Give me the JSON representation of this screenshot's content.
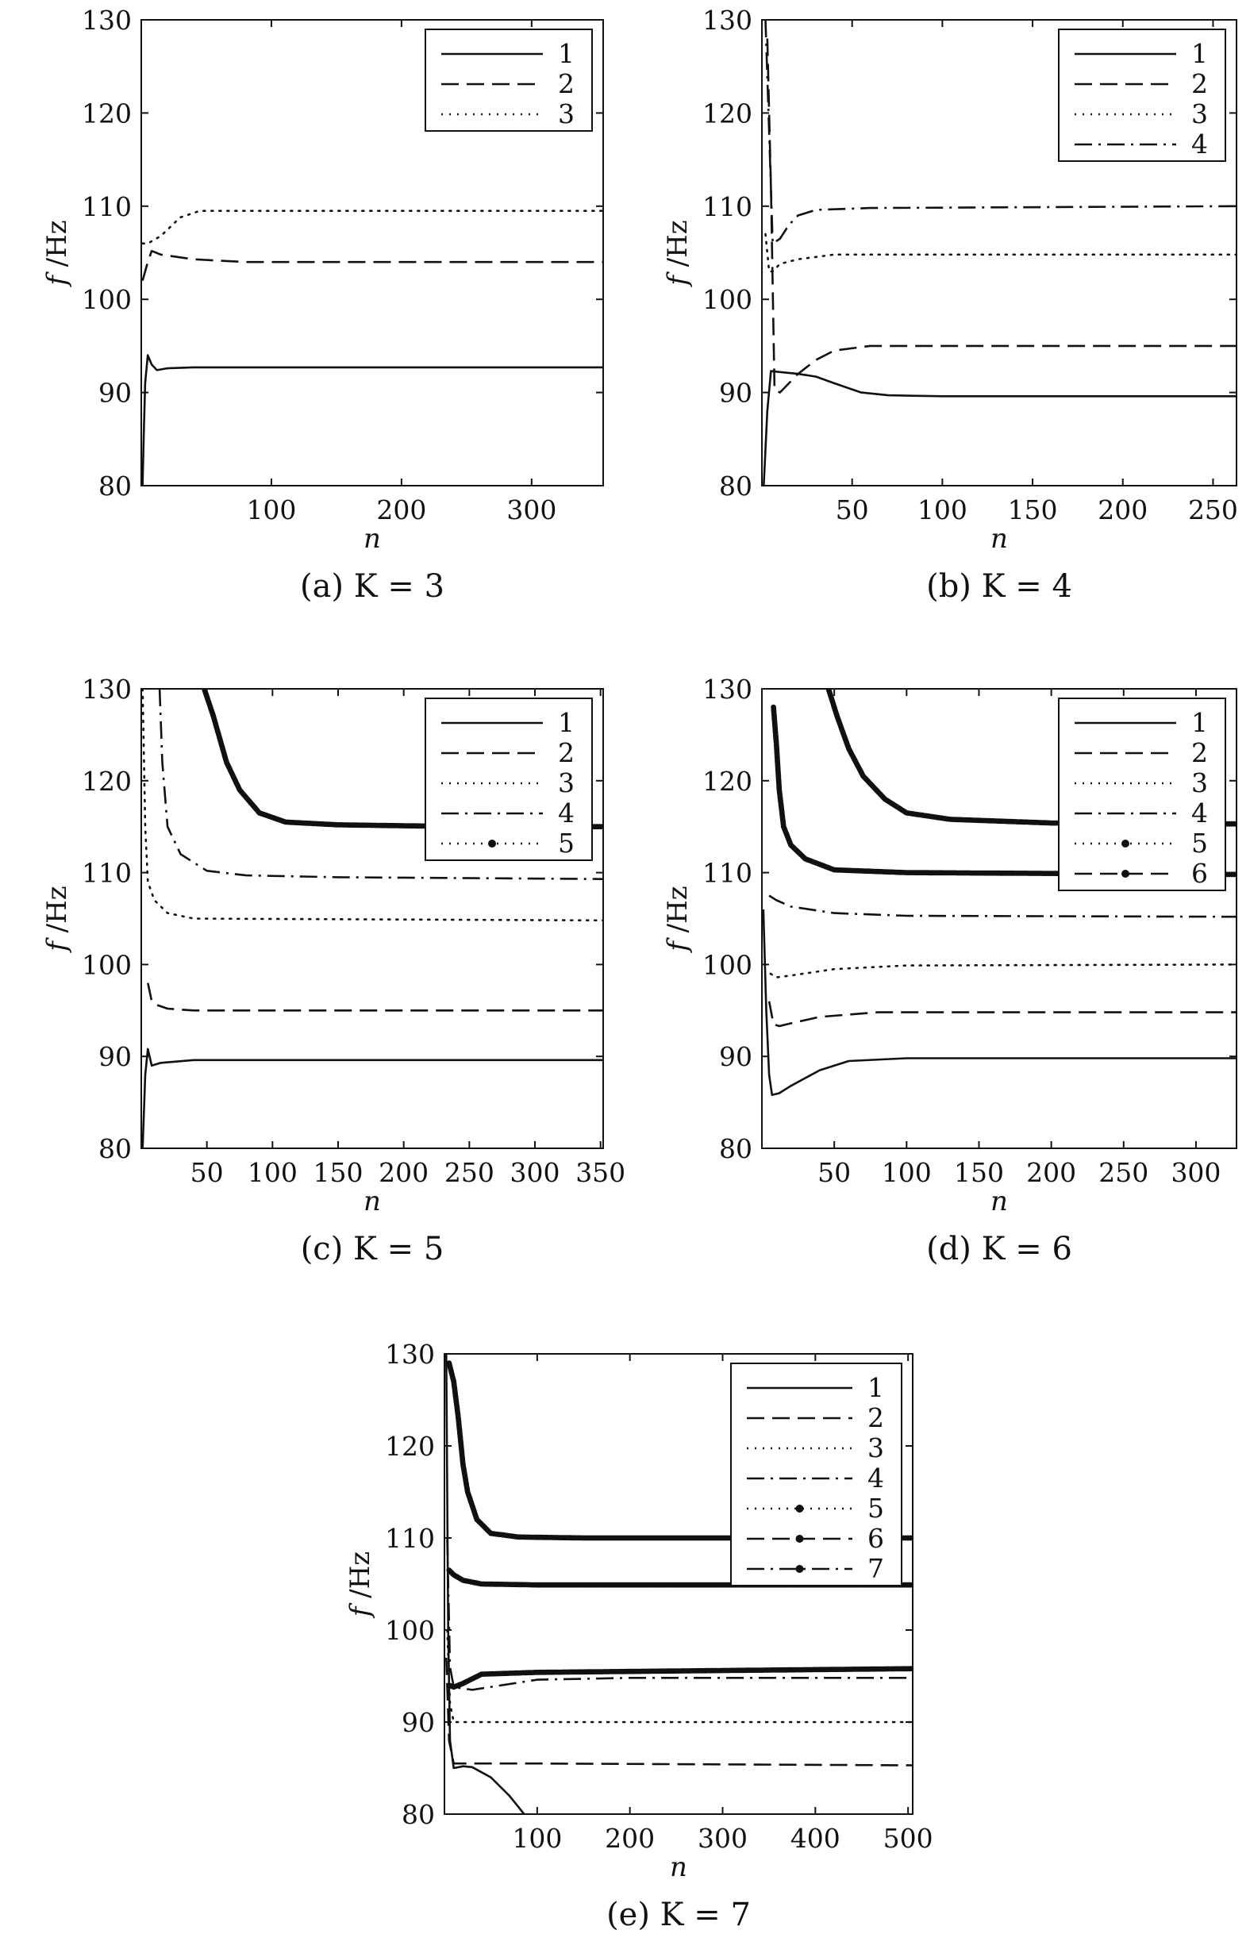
{
  "chart_data": [
    {
      "type": "line",
      "caption": "(a)  K = 3",
      "xlabel": "n",
      "ylabel": "f /Hz",
      "xlim": [
        0,
        355
      ],
      "ylim": [
        80,
        130
      ],
      "xticks": [
        100,
        200,
        300
      ],
      "yticks": [
        80,
        90,
        100,
        110,
        120,
        130
      ],
      "legend_position": "top-right",
      "series": [
        {
          "name": "1",
          "style": "solid",
          "points": [
            [
              1,
              80
            ],
            [
              2,
              86
            ],
            [
              3,
              91
            ],
            [
              5,
              94
            ],
            [
              8,
              93
            ],
            [
              12,
              92.4
            ],
            [
              20,
              92.6
            ],
            [
              40,
              92.7
            ],
            [
              355,
              92.7
            ]
          ]
        },
        {
          "name": "2",
          "style": "dashed",
          "points": [
            [
              1,
              102
            ],
            [
              3,
              103
            ],
            [
              5,
              104
            ],
            [
              8,
              105.2
            ],
            [
              15,
              104.8
            ],
            [
              40,
              104.3
            ],
            [
              80,
              104
            ],
            [
              355,
              104
            ]
          ]
        },
        {
          "name": "3",
          "style": "dotted",
          "points": [
            [
              1,
              106
            ],
            [
              5,
              106
            ],
            [
              15,
              106.8
            ],
            [
              30,
              108.8
            ],
            [
              45,
              109.5
            ],
            [
              80,
              109.5
            ],
            [
              355,
              109.5
            ]
          ]
        }
      ]
    },
    {
      "type": "line",
      "caption": "(b)  K = 4",
      "xlabel": "n",
      "ylabel": "f /Hz",
      "xlim": [
        0,
        263
      ],
      "ylim": [
        80,
        130
      ],
      "xticks": [
        50,
        100,
        150,
        200,
        250
      ],
      "yticks": [
        80,
        90,
        100,
        110,
        120,
        130
      ],
      "legend_position": "top-right",
      "series": [
        {
          "name": "1",
          "style": "solid",
          "points": [
            [
              1,
              80
            ],
            [
              3,
              88
            ],
            [
              5,
              92.3
            ],
            [
              10,
              92.2
            ],
            [
              20,
              92
            ],
            [
              30,
              91.7
            ],
            [
              40,
              91
            ],
            [
              55,
              90
            ],
            [
              70,
              89.7
            ],
            [
              100,
              89.6
            ],
            [
              263,
              89.6
            ]
          ]
        },
        {
          "name": "2",
          "style": "dashed",
          "points": [
            [
              3,
              128
            ],
            [
              5,
              112
            ],
            [
              7,
              90.3
            ],
            [
              10,
              90
            ],
            [
              15,
              91
            ],
            [
              20,
              92
            ],
            [
              30,
              93.5
            ],
            [
              40,
              94.5
            ],
            [
              60,
              95
            ],
            [
              263,
              95
            ]
          ]
        },
        {
          "name": "3",
          "style": "dotted",
          "points": [
            [
              2,
              107
            ],
            [
              4,
              103
            ],
            [
              6,
              103
            ],
            [
              10,
              103.8
            ],
            [
              20,
              104.3
            ],
            [
              40,
              104.8
            ],
            [
              263,
              104.8
            ]
          ]
        },
        {
          "name": "4",
          "style": "dashdot",
          "points": [
            [
              2,
              130
            ],
            [
              4,
              118
            ],
            [
              6,
              106
            ],
            [
              10,
              106.5
            ],
            [
              15,
              108
            ],
            [
              20,
              109
            ],
            [
              30,
              109.6
            ],
            [
              60,
              109.8
            ],
            [
              263,
              110
            ]
          ]
        }
      ]
    },
    {
      "type": "line",
      "caption": "(c)  K = 5",
      "xlabel": "n",
      "ylabel": "f /Hz",
      "xlim": [
        0,
        352
      ],
      "ylim": [
        80,
        130
      ],
      "xticks": [
        50,
        100,
        150,
        200,
        250,
        300,
        350
      ],
      "yticks": [
        80,
        90,
        100,
        110,
        120,
        130
      ],
      "legend_position": "top-right",
      "series": [
        {
          "name": "1",
          "style": "solid",
          "points": [
            [
              1,
              80
            ],
            [
              3,
              88
            ],
            [
              5,
              90.8
            ],
            [
              8,
              89
            ],
            [
              15,
              89.3
            ],
            [
              40,
              89.6
            ],
            [
              352,
              89.6
            ]
          ]
        },
        {
          "name": "2",
          "style": "dashed",
          "points": [
            [
              5,
              98
            ],
            [
              8,
              96
            ],
            [
              12,
              95.6
            ],
            [
              20,
              95.2
            ],
            [
              40,
              95
            ],
            [
              352,
              95
            ]
          ]
        },
        {
          "name": "3",
          "style": "dotted",
          "points": [
            [
              1,
              130
            ],
            [
              3,
              115
            ],
            [
              5,
              109
            ],
            [
              10,
              107
            ],
            [
              20,
              105.6
            ],
            [
              40,
              105
            ],
            [
              352,
              104.8
            ]
          ]
        },
        {
          "name": "4",
          "style": "dashdot",
          "points": [
            [
              14,
              130
            ],
            [
              16,
              122
            ],
            [
              20,
              115
            ],
            [
              30,
              112
            ],
            [
              50,
              110.2
            ],
            [
              80,
              109.7
            ],
            [
              150,
              109.5
            ],
            [
              352,
              109.3
            ]
          ]
        },
        {
          "name": "5",
          "style": "dotted-marker",
          "points": [
            [
              48,
              130
            ],
            [
              55,
              127
            ],
            [
              65,
              122
            ],
            [
              75,
              119
            ],
            [
              90,
              116.5
            ],
            [
              110,
              115.5
            ],
            [
              150,
              115.2
            ],
            [
              250,
              115
            ],
            [
              352,
              115
            ]
          ]
        }
      ]
    },
    {
      "type": "line",
      "caption": "(d)  K = 6",
      "xlabel": "n",
      "ylabel": "f /Hz",
      "xlim": [
        0,
        328
      ],
      "ylim": [
        80,
        130
      ],
      "xticks": [
        50,
        100,
        150,
        200,
        250,
        300
      ],
      "yticks": [
        80,
        90,
        100,
        110,
        120,
        130
      ],
      "legend_position": "top-right",
      "series": [
        {
          "name": "1",
          "style": "solid",
          "points": [
            [
              1,
              106
            ],
            [
              3,
              95
            ],
            [
              5,
              88
            ],
            [
              7,
              85.8
            ],
            [
              12,
              86
            ],
            [
              20,
              86.8
            ],
            [
              40,
              88.5
            ],
            [
              60,
              89.5
            ],
            [
              100,
              89.8
            ],
            [
              328,
              89.8
            ]
          ]
        },
        {
          "name": "2",
          "style": "dashed",
          "points": [
            [
              5,
              96
            ],
            [
              8,
              93.5
            ],
            [
              12,
              93.3
            ],
            [
              20,
              93.6
            ],
            [
              40,
              94.3
            ],
            [
              80,
              94.8
            ],
            [
              328,
              94.8
            ]
          ]
        },
        {
          "name": "3",
          "style": "dotted",
          "points": [
            [
              6,
              99
            ],
            [
              10,
              98.6
            ],
            [
              20,
              98.8
            ],
            [
              50,
              99.5
            ],
            [
              100,
              99.9
            ],
            [
              328,
              100
            ]
          ]
        },
        {
          "name": "4",
          "style": "dashdot",
          "points": [
            [
              5,
              107.5
            ],
            [
              10,
              107
            ],
            [
              20,
              106.3
            ],
            [
              50,
              105.6
            ],
            [
              100,
              105.3
            ],
            [
              328,
              105.2
            ]
          ]
        },
        {
          "name": "5",
          "style": "dotted-marker",
          "points": [
            [
              8,
              128
            ],
            [
              10,
              124
            ],
            [
              12,
              119
            ],
            [
              15,
              115
            ],
            [
              20,
              113
            ],
            [
              30,
              111.5
            ],
            [
              50,
              110.3
            ],
            [
              100,
              110
            ],
            [
              328,
              109.8
            ]
          ]
        },
        {
          "name": "6",
          "style": "dashed-marker",
          "points": [
            [
              46,
              130
            ],
            [
              52,
              127
            ],
            [
              60,
              123.5
            ],
            [
              70,
              120.5
            ],
            [
              85,
              118
            ],
            [
              100,
              116.5
            ],
            [
              130,
              115.8
            ],
            [
              200,
              115.4
            ],
            [
              328,
              115.3
            ]
          ]
        }
      ]
    },
    {
      "type": "line",
      "caption": "(e)  K = 7",
      "xlabel": "n",
      "ylabel": "f /Hz",
      "xlim": [
        0,
        505
      ],
      "ylim": [
        80,
        130
      ],
      "xticks": [
        100,
        200,
        300,
        400,
        500
      ],
      "yticks": [
        80,
        90,
        100,
        110,
        120,
        130
      ],
      "legend_position": "top-right",
      "series": [
        {
          "name": "1",
          "style": "solid",
          "points": [
            [
              2,
              130
            ],
            [
              4,
              100
            ],
            [
              6,
              88
            ],
            [
              10,
              85
            ],
            [
              20,
              85.2
            ],
            [
              30,
              85.1
            ],
            [
              50,
              84
            ],
            [
              70,
              82
            ],
            [
              90,
              79.5
            ]
          ]
        },
        {
          "name": "2",
          "style": "dashed",
          "points": [
            [
              2,
              97
            ],
            [
              5,
              88
            ],
            [
              10,
              85.5
            ],
            [
              30,
              85.5
            ],
            [
              100,
              85.5
            ],
            [
              505,
              85.3
            ]
          ]
        },
        {
          "name": "3",
          "style": "dotted",
          "points": [
            [
              3,
              100
            ],
            [
              6,
              92
            ],
            [
              10,
              90
            ],
            [
              30,
              90
            ],
            [
              505,
              90
            ]
          ]
        },
        {
          "name": "4",
          "style": "dashdot",
          "points": [
            [
              3,
              110
            ],
            [
              6,
              96
            ],
            [
              10,
              93.8
            ],
            [
              30,
              93.5
            ],
            [
              100,
              94.6
            ],
            [
              200,
              94.8
            ],
            [
              505,
              94.8
            ]
          ]
        },
        {
          "name": "5",
          "style": "dotted-marker",
          "points": [
            [
              5,
              129
            ],
            [
              10,
              127
            ],
            [
              15,
              123
            ],
            [
              20,
              118
            ],
            [
              25,
              115
            ],
            [
              35,
              112
            ],
            [
              50,
              110.5
            ],
            [
              80,
              110.1
            ],
            [
              150,
              110
            ],
            [
              505,
              110
            ]
          ]
        },
        {
          "name": "6",
          "style": "dashed-marker",
          "points": [
            [
              5,
              106.5
            ],
            [
              10,
              106
            ],
            [
              20,
              105.4
            ],
            [
              40,
              105
            ],
            [
              100,
              104.9
            ],
            [
              505,
              104.9
            ]
          ]
        },
        {
          "name": "7",
          "style": "dashdot-marker",
          "points": [
            [
              5,
              94
            ],
            [
              10,
              93.8
            ],
            [
              20,
              94.2
            ],
            [
              40,
              95.2
            ],
            [
              100,
              95.4
            ],
            [
              300,
              95.6
            ],
            [
              505,
              95.8
            ]
          ]
        }
      ]
    }
  ]
}
